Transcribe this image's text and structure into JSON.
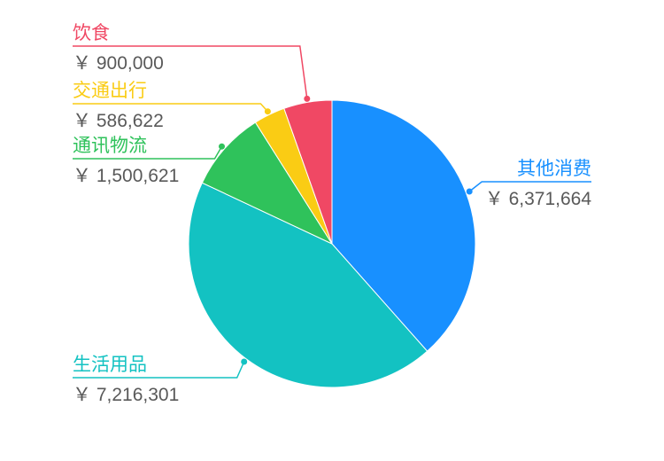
{
  "chart_data": {
    "type": "pie",
    "currency_symbol": "￥",
    "slices": [
      {
        "name": "其他消费",
        "value": 6371664,
        "value_label": "6,371,664",
        "color": "#1890ff"
      },
      {
        "name": "生活用品",
        "value": 7216301,
        "value_label": "7,216,301",
        "color": "#13c2c2"
      },
      {
        "name": "通讯物流",
        "value": 1500621,
        "value_label": "1,500,621",
        "color": "#2fc25b"
      },
      {
        "name": "交通出行",
        "value": 586622,
        "value_label": "586,622",
        "color": "#facc14"
      },
      {
        "name": "饮食",
        "value": 900000,
        "value_label": "900,000",
        "color": "#f04864"
      }
    ]
  }
}
